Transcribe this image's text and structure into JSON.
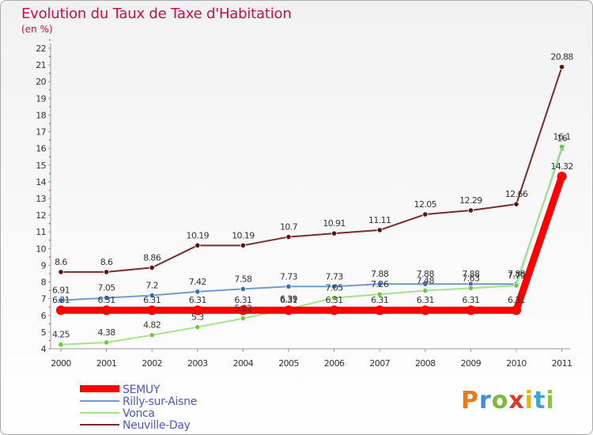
{
  "chart_data": {
    "type": "line",
    "title": "Evolution du Taux de Taxe d'Habitation",
    "subtitle": "(en %)",
    "categories": [
      "2000",
      "2001",
      "2002",
      "2003",
      "2004",
      "2005",
      "2006",
      "2007",
      "2008",
      "2009",
      "2010",
      "2011"
    ],
    "ylim": [
      4,
      22
    ],
    "yticks": [
      4,
      5,
      6,
      7,
      8,
      9,
      10,
      11,
      12,
      13,
      14,
      15,
      16,
      17,
      18,
      19,
      20,
      21,
      22
    ],
    "grid": false,
    "legend_position": "bottom-left",
    "series": [
      {
        "name": "SEMUY",
        "color": "#ff0000",
        "values": [
          6.31,
          6.31,
          6.31,
          6.31,
          6.31,
          6.31,
          6.31,
          6.31,
          6.31,
          6.31,
          6.31,
          14.32
        ],
        "labels": [
          "6.31",
          "6.31",
          "6.31",
          "6.31",
          "6.31",
          "6.31",
          "6.31",
          "6.31",
          "6.31",
          "6.31",
          "6.31",
          "14.32"
        ]
      },
      {
        "name": "Rilly-sur-Aisne",
        "color": "#6f9ccd",
        "marker_color": "#2f6fbd",
        "values": [
          6.91,
          7.05,
          7.2,
          7.42,
          7.58,
          7.73,
          7.73,
          7.88,
          7.88,
          7.88,
          7.88,
          16
        ],
        "labels": [
          "6.91",
          "7.05",
          "7.2",
          "7.42",
          "7.58",
          "7.73",
          "7.73",
          "7.88",
          "7.88",
          "7.88",
          "7.88",
          "16"
        ]
      },
      {
        "name": "Vonca",
        "color": "#a6e28a",
        "marker_color": "#6cc93a",
        "values": [
          4.25,
          4.38,
          4.82,
          5.3,
          5.82,
          6.39,
          7.05,
          7.26,
          7.48,
          7.63,
          7.79,
          16.1
        ],
        "labels": [
          "4.25",
          "4.38",
          "4.82",
          "5.3",
          "5.82",
          "6.39",
          "7.05",
          "7.26",
          "7.48",
          "7.63",
          "7.79",
          "16.1"
        ]
      },
      {
        "name": "Neuville-Day",
        "color": "#7a2a2a",
        "marker_color": "#5a1414",
        "values": [
          8.6,
          8.6,
          8.86,
          10.19,
          10.19,
          10.7,
          10.91,
          11.11,
          12.05,
          12.29,
          12.66,
          20.88
        ],
        "labels": [
          "8.6",
          "8.6",
          "8.86",
          "10.19",
          "10.19",
          "10.7",
          "10.91",
          "11.11",
          "12.05",
          "12.29",
          "12.66",
          "20.88"
        ]
      }
    ]
  },
  "logo": {
    "text": "Proxiti"
  }
}
